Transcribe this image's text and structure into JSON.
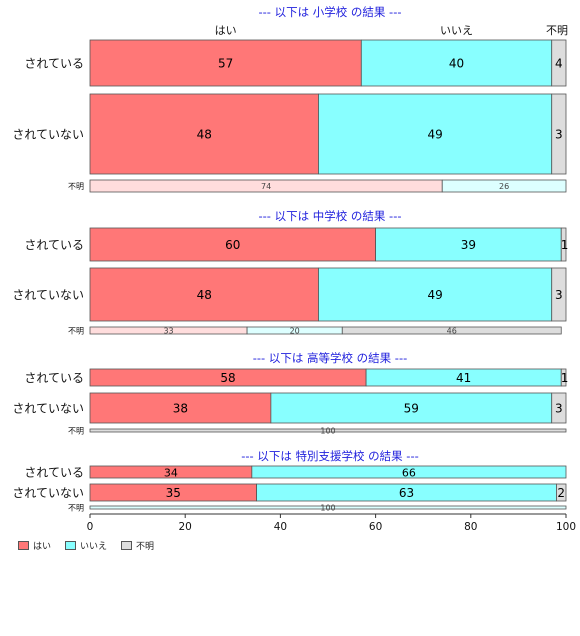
{
  "chart_data": {
    "type": "bar",
    "orientation": "horizontal",
    "stacked": true,
    "xlim": [
      0,
      100
    ],
    "xticks": [
      0,
      20,
      40,
      60,
      80,
      100
    ],
    "top_headers": [
      "はい",
      "いいえ",
      "不明"
    ],
    "series_names": [
      "はい",
      "いいえ",
      "不明"
    ],
    "colors": [
      "#FF7777",
      "#88FFFF",
      "#DDDDDD"
    ],
    "light_colors": [
      "#FFDDDD",
      "#DDFFFF",
      "#DDDDDD"
    ],
    "panels": [
      {
        "title": "--- 以下は 小学校 の結果 ---",
        "rows": [
          {
            "label": "されている",
            "values": [
              57,
              40,
              4
            ]
          },
          {
            "label": "されていない",
            "values": [
              48,
              49,
              3
            ]
          },
          {
            "label": "不明",
            "values": [
              74,
              26,
              0
            ],
            "minor": true
          }
        ]
      },
      {
        "title": "--- 以下は 中学校 の結果 ---",
        "rows": [
          {
            "label": "されている",
            "values": [
              60,
              39,
              1
            ]
          },
          {
            "label": "されていない",
            "values": [
              48,
              49,
              3
            ]
          },
          {
            "label": "不明",
            "values": [
              33,
              20,
              46
            ],
            "minor": true
          }
        ]
      },
      {
        "title": "--- 以下は 高等学校 の結果 ---",
        "rows": [
          {
            "label": "されている",
            "values": [
              58,
              41,
              1
            ]
          },
          {
            "label": "されていない",
            "values": [
              38,
              59,
              3
            ]
          },
          {
            "label": "不明",
            "values": [
              0,
              0,
              100
            ],
            "minor": true
          }
        ]
      },
      {
        "title": "--- 以下は 特別支援学校 の結果 ---",
        "rows": [
          {
            "label": "されている",
            "values": [
              34,
              66,
              0
            ]
          },
          {
            "label": "されていない",
            "values": [
              35,
              63,
              2
            ]
          },
          {
            "label": "不明",
            "values": [
              0,
              100,
              0
            ],
            "minor": true
          }
        ]
      }
    ]
  }
}
